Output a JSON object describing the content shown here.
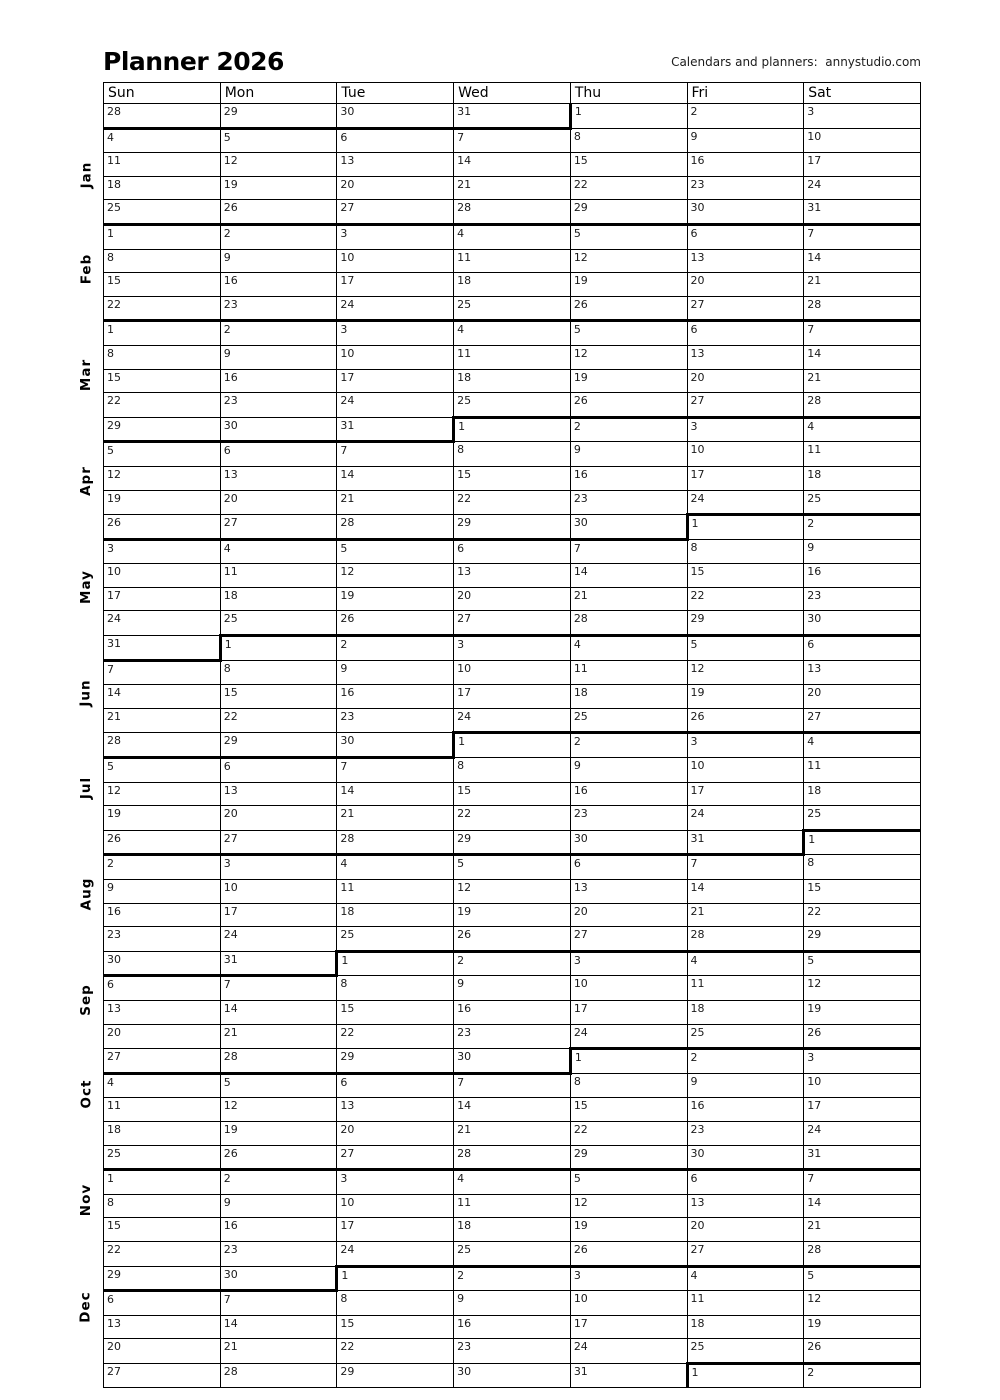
{
  "title": "Planner 2026",
  "tagline": "Calendars and planners:  annystudio.com",
  "weekday_headers": [
    "Sun",
    "Mon",
    "Tue",
    "Wed",
    "Thu",
    "Fri",
    "Sat"
  ],
  "month_labels": [
    "Jan",
    "Feb",
    "Mar",
    "Apr",
    "May",
    "Jun",
    "Jul",
    "Aug",
    "Sep",
    "Oct",
    "Nov",
    "Dec"
  ],
  "weeks": [
    [
      28,
      29,
      30,
      31,
      1,
      2,
      3
    ],
    [
      4,
      5,
      6,
      7,
      8,
      9,
      10
    ],
    [
      11,
      12,
      13,
      14,
      15,
      16,
      17
    ],
    [
      18,
      19,
      20,
      21,
      22,
      23,
      24
    ],
    [
      25,
      26,
      27,
      28,
      29,
      30,
      31
    ],
    [
      1,
      2,
      3,
      4,
      5,
      6,
      7
    ],
    [
      8,
      9,
      10,
      11,
      12,
      13,
      14
    ],
    [
      15,
      16,
      17,
      18,
      19,
      20,
      21
    ],
    [
      22,
      23,
      24,
      25,
      26,
      27,
      28
    ],
    [
      1,
      2,
      3,
      4,
      5,
      6,
      7
    ],
    [
      8,
      9,
      10,
      11,
      12,
      13,
      14
    ],
    [
      15,
      16,
      17,
      18,
      19,
      20,
      21
    ],
    [
      22,
      23,
      24,
      25,
      26,
      27,
      28
    ],
    [
      29,
      30,
      31,
      1,
      2,
      3,
      4
    ],
    [
      5,
      6,
      7,
      8,
      9,
      10,
      11
    ],
    [
      12,
      13,
      14,
      15,
      16,
      17,
      18
    ],
    [
      19,
      20,
      21,
      22,
      23,
      24,
      25
    ],
    [
      26,
      27,
      28,
      29,
      30,
      1,
      2
    ],
    [
      3,
      4,
      5,
      6,
      7,
      8,
      9
    ],
    [
      10,
      11,
      12,
      13,
      14,
      15,
      16
    ],
    [
      17,
      18,
      19,
      20,
      21,
      22,
      23
    ],
    [
      24,
      25,
      26,
      27,
      28,
      29,
      30
    ],
    [
      31,
      1,
      2,
      3,
      4,
      5,
      6
    ],
    [
      7,
      8,
      9,
      10,
      11,
      12,
      13
    ],
    [
      14,
      15,
      16,
      17,
      18,
      19,
      20
    ],
    [
      21,
      22,
      23,
      24,
      25,
      26,
      27
    ],
    [
      28,
      29,
      30,
      1,
      2,
      3,
      4
    ],
    [
      5,
      6,
      7,
      8,
      9,
      10,
      11
    ],
    [
      12,
      13,
      14,
      15,
      16,
      17,
      18
    ],
    [
      19,
      20,
      21,
      22,
      23,
      24,
      25
    ],
    [
      26,
      27,
      28,
      29,
      30,
      31,
      1
    ],
    [
      2,
      3,
      4,
      5,
      6,
      7,
      8
    ],
    [
      9,
      10,
      11,
      12,
      13,
      14,
      15
    ],
    [
      16,
      17,
      18,
      19,
      20,
      21,
      22
    ],
    [
      23,
      24,
      25,
      26,
      27,
      28,
      29
    ],
    [
      30,
      31,
      1,
      2,
      3,
      4,
      5
    ],
    [
      6,
      7,
      8,
      9,
      10,
      11,
      12
    ],
    [
      13,
      14,
      15,
      16,
      17,
      18,
      19
    ],
    [
      20,
      21,
      22,
      23,
      24,
      25,
      26
    ],
    [
      27,
      28,
      29,
      30,
      1,
      2,
      3
    ],
    [
      4,
      5,
      6,
      7,
      8,
      9,
      10
    ],
    [
      11,
      12,
      13,
      14,
      15,
      16,
      17
    ],
    [
      18,
      19,
      20,
      21,
      22,
      23,
      24
    ],
    [
      25,
      26,
      27,
      28,
      29,
      30,
      31
    ],
    [
      1,
      2,
      3,
      4,
      5,
      6,
      7
    ],
    [
      8,
      9,
      10,
      11,
      12,
      13,
      14
    ],
    [
      15,
      16,
      17,
      18,
      19,
      20,
      21
    ],
    [
      22,
      23,
      24,
      25,
      26,
      27,
      28
    ],
    [
      29,
      30,
      1,
      2,
      3,
      4,
      5
    ],
    [
      6,
      7,
      8,
      9,
      10,
      11,
      12
    ],
    [
      13,
      14,
      15,
      16,
      17,
      18,
      19
    ],
    [
      20,
      21,
      22,
      23,
      24,
      25,
      26
    ],
    [
      27,
      28,
      29,
      30,
      31,
      1,
      2
    ]
  ]
}
